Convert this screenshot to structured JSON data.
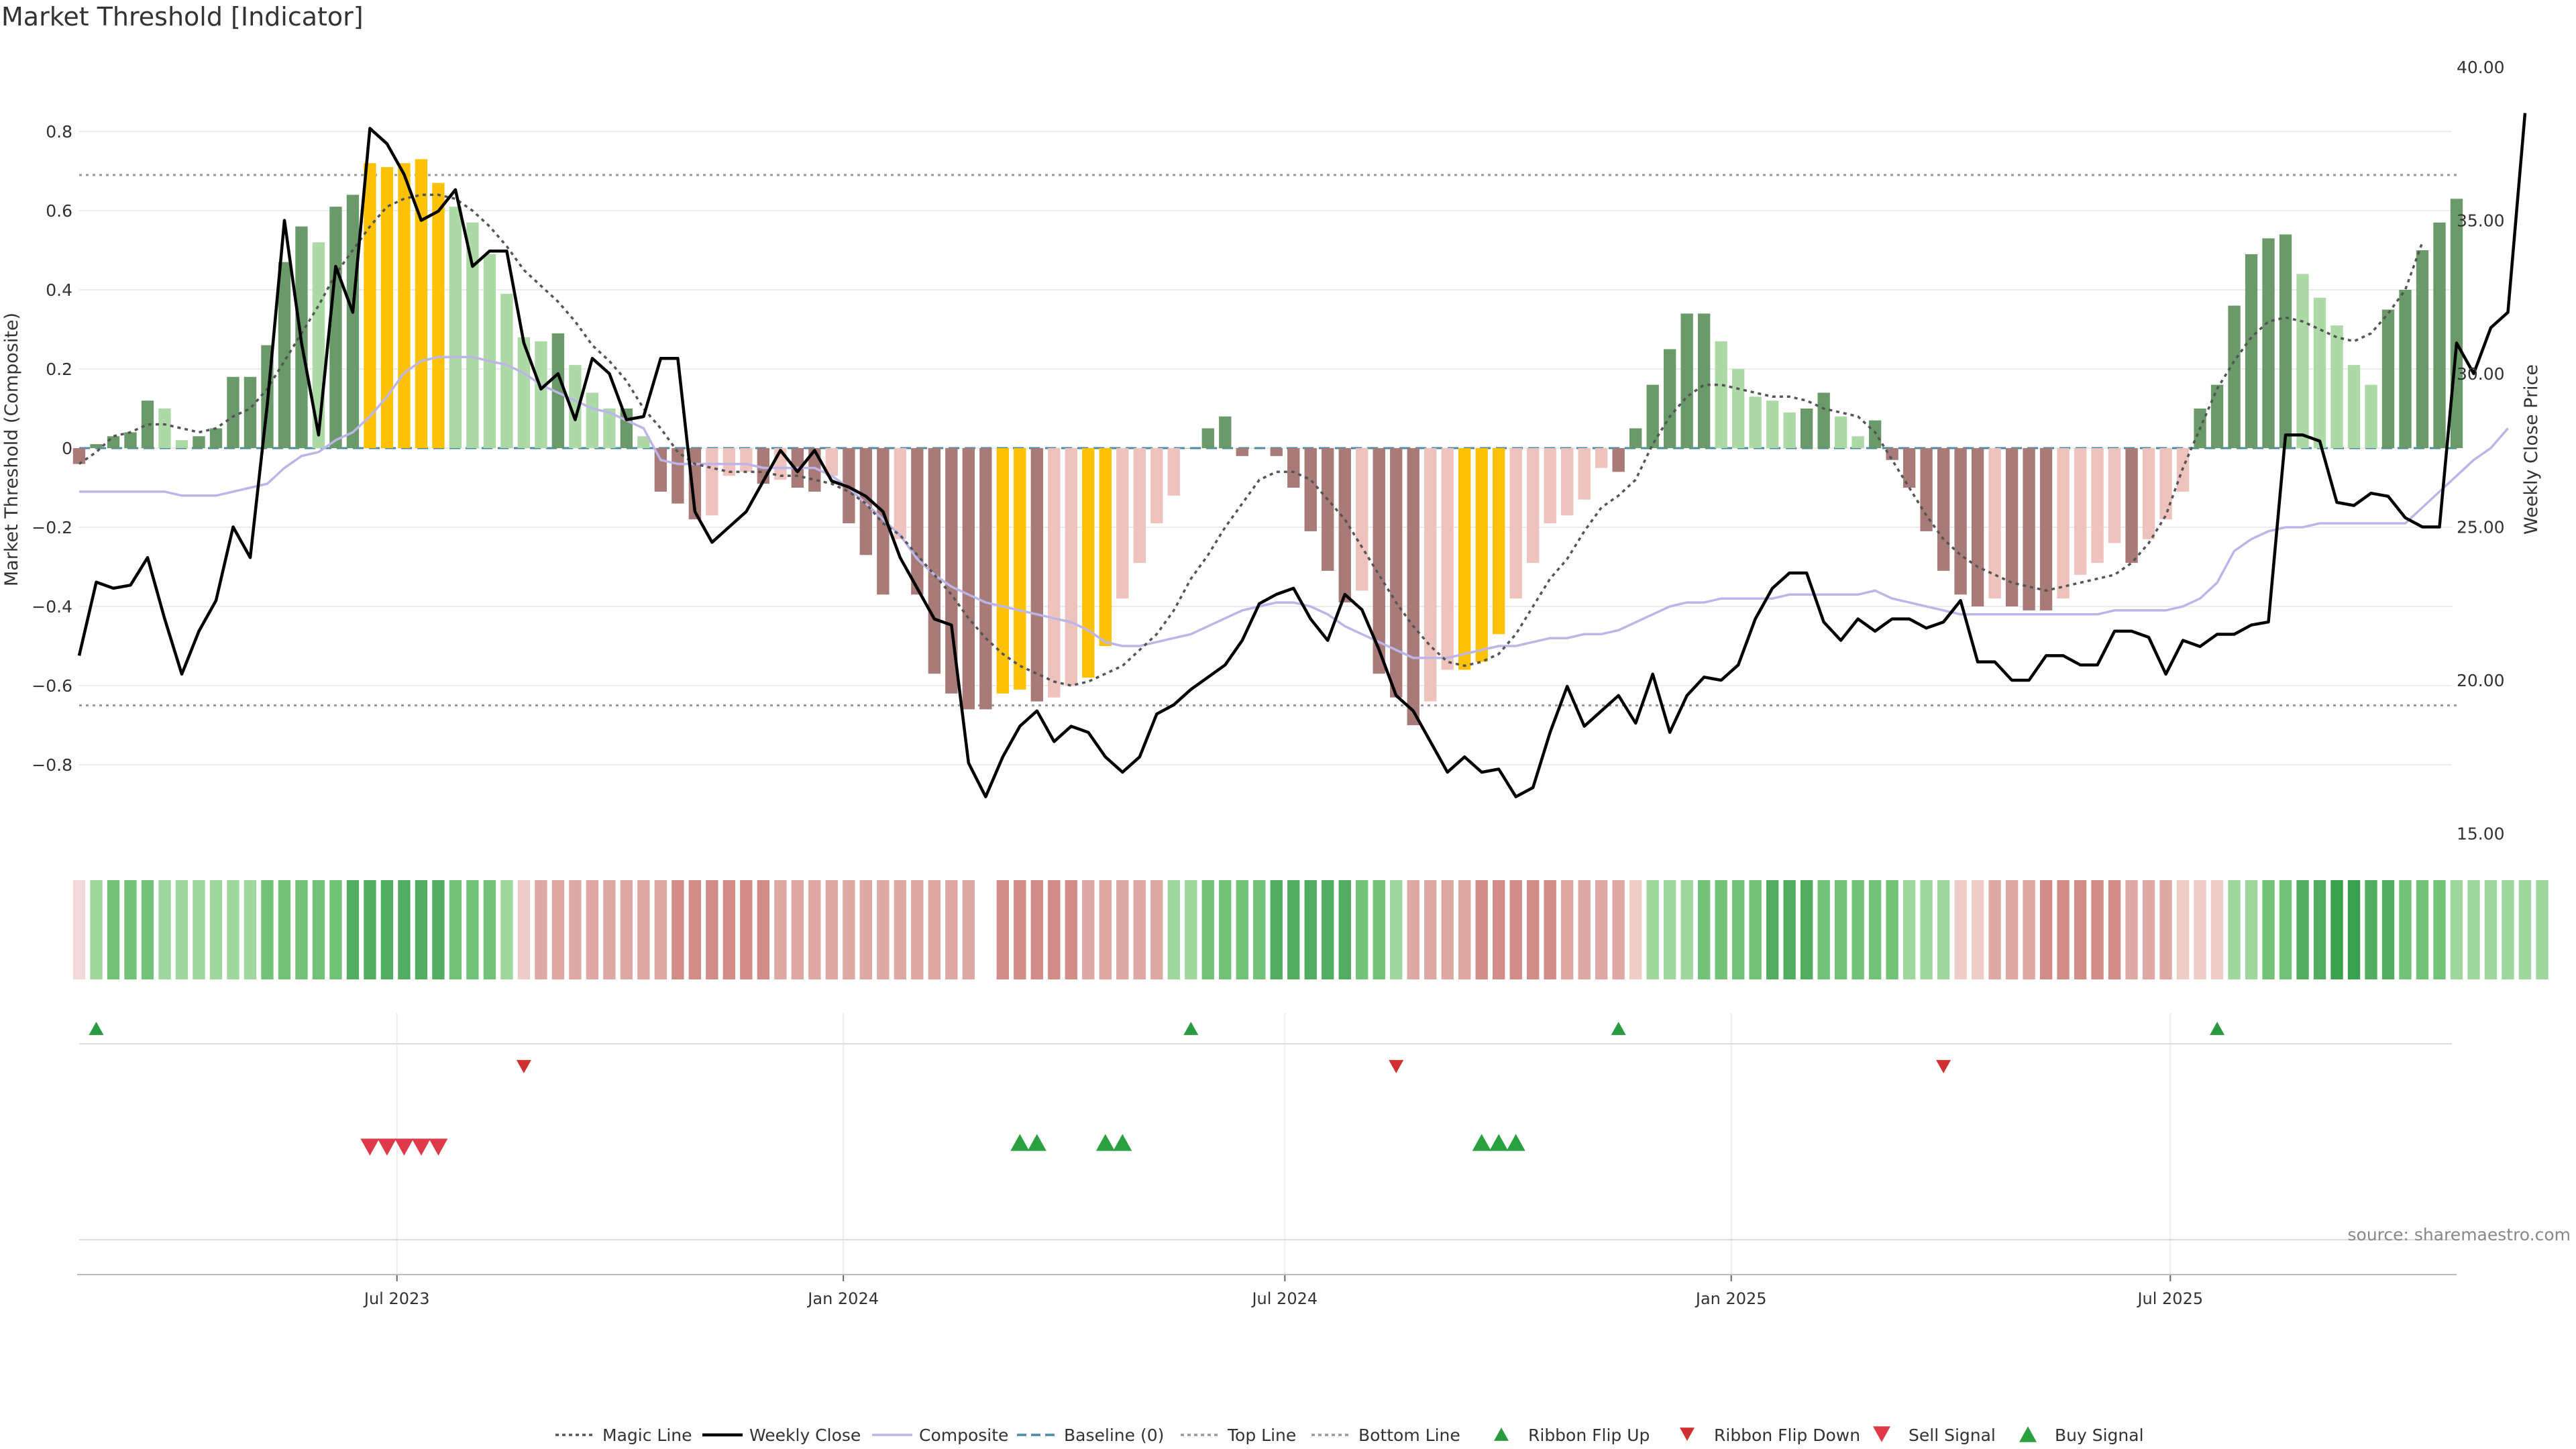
{
  "chart_data": {
    "type": "bar",
    "title": "Market Threshold [Indicator]",
    "ylabel_left": "Market Threshold (Composite)",
    "ylabel_right": "Weekly Close Price",
    "ylim_left": [
      -0.8,
      0.8
    ],
    "yticks_left": [
      "0.8",
      "0.6",
      "0.4",
      "0.2",
      "0",
      "−0.2",
      "−0.4",
      "−0.6",
      "−0.8"
    ],
    "ylim_right": [
      15,
      40
    ],
    "yticks_right": [
      "40.00",
      "35.00",
      "30.00",
      "25.00",
      "20.00",
      "15.00"
    ],
    "xticks": [
      "Jul 2023",
      "Jan 2024",
      "Jul 2024",
      "Jan 2025",
      "Jul 2025"
    ],
    "x_start": "2023-02-20",
    "x_end": "2025-10-27",
    "top_line": 0.69,
    "bottom_line": -0.65,
    "baseline": 0,
    "source": "source: sharemaestro.com",
    "grid": true,
    "legend_position": "bottom-center",
    "colors": {
      "bull_strong": "#6a9a6a",
      "bull_weak": "#acd9a6",
      "bear_strong": "#a87a78",
      "bear_weak": "#eec2bd",
      "extreme": "#fdc106",
      "weekly_close": "#000000",
      "magic_line": "#555555",
      "composite": "#bdb5e8",
      "baseline": "#4a8aa8",
      "threshold_line": "#999999",
      "ribbon_flip_up": "#2a9a40",
      "ribbon_flip_down": "#d03030",
      "sell_signal": "#e03a4a",
      "buy_signal": "#2aa040"
    },
    "legend": [
      {
        "label": "Magic Line",
        "kind": "dotted",
        "color": "#555555"
      },
      {
        "label": "Weekly Close",
        "kind": "solid",
        "color": "#000000"
      },
      {
        "label": "Composite",
        "kind": "solid",
        "color": "#bdb5e8"
      },
      {
        "label": "Baseline (0)",
        "kind": "dashed",
        "color": "#4a8aa8"
      },
      {
        "label": "Top Line",
        "kind": "dotted",
        "color": "#999999"
      },
      {
        "label": "Bottom Line",
        "kind": "dotted",
        "color": "#999999"
      },
      {
        "label": "Ribbon Flip Up",
        "kind": "tri-up",
        "color": "#2a9a40"
      },
      {
        "label": "Ribbon Flip Down",
        "kind": "tri-down",
        "color": "#d03030"
      },
      {
        "label": "Sell Signal",
        "kind": "tri-down-big",
        "color": "#e03a4a"
      },
      {
        "label": "Buy Signal",
        "kind": "tri-up-big",
        "color": "#2aa040"
      }
    ],
    "bars": [
      -0.04,
      0.01,
      0.03,
      0.04,
      0.12,
      0.1,
      0.02,
      0.03,
      0.05,
      0.18,
      0.18,
      0.26,
      0.47,
      0.56,
      0.52,
      0.61,
      0.64,
      0.72,
      0.71,
      0.72,
      0.73,
      0.67,
      0.61,
      0.57,
      0.49,
      0.39,
      0.28,
      0.27,
      0.29,
      0.21,
      0.14,
      0.1,
      0.1,
      0.03,
      -0.11,
      -0.14,
      -0.18,
      -0.17,
      -0.07,
      -0.06,
      -0.09,
      -0.08,
      -0.1,
      -0.11,
      -0.07,
      -0.19,
      -0.27,
      -0.37,
      -0.23,
      -0.37,
      -0.57,
      -0.62,
      -0.66,
      -0.66,
      -0.62,
      -0.61,
      -0.64,
      -0.63,
      -0.6,
      -0.58,
      -0.5,
      -0.38,
      -0.29,
      -0.19,
      -0.12,
      0.0,
      0.05,
      0.08,
      -0.02,
      0.0,
      -0.02,
      -0.1,
      -0.21,
      -0.31,
      -0.39,
      -0.36,
      -0.57,
      -0.63,
      -0.7,
      -0.64,
      -0.56,
      -0.56,
      -0.54,
      -0.47,
      -0.38,
      -0.29,
      -0.19,
      -0.17,
      -0.13,
      -0.05,
      -0.06,
      0.05,
      0.16,
      0.25,
      0.34,
      0.34,
      0.27,
      0.2,
      0.13,
      0.12,
      0.09,
      0.1,
      0.14,
      0.08,
      0.03,
      0.07,
      -0.03,
      -0.1,
      -0.21,
      -0.31,
      -0.37,
      -0.4,
      -0.38,
      -0.4,
      -0.41,
      -0.41,
      -0.38,
      -0.32,
      -0.29,
      -0.24,
      -0.29,
      -0.23,
      -0.18,
      -0.11,
      0.1,
      0.16,
      0.36,
      0.49,
      0.53,
      0.54,
      0.44,
      0.38,
      0.31,
      0.21,
      0.16,
      0.35,
      0.4,
      0.5,
      0.57,
      0.63
    ],
    "extreme_bars": [
      17,
      18,
      19,
      20,
      21,
      54,
      55,
      59,
      60,
      81,
      82,
      83
    ],
    "weekly_close": [
      20.8,
      23.2,
      23.0,
      23.1,
      24.0,
      22.0,
      20.2,
      21.6,
      22.6,
      25.0,
      24.0,
      29.0,
      35.0,
      31.0,
      28.0,
      33.5,
      32.0,
      38.0,
      37.5,
      36.5,
      35.0,
      35.3,
      36.0,
      33.5,
      34.0,
      34.0,
      31.0,
      29.5,
      30.0,
      28.5,
      30.5,
      30.0,
      28.5,
      28.6,
      30.5,
      30.5,
      25.5,
      24.5,
      25.0,
      25.5,
      26.5,
      27.5,
      26.8,
      27.5,
      26.5,
      26.3,
      26.0,
      25.5,
      24.0,
      23.0,
      22.0,
      21.8,
      17.3,
      16.2,
      17.5,
      18.5,
      19.0,
      18.0,
      18.5,
      18.3,
      17.5,
      17.0,
      17.5,
      18.9,
      19.2,
      19.7,
      20.1,
      20.5,
      21.3,
      22.5,
      22.8,
      23.0,
      22.0,
      21.3,
      22.8,
      22.3,
      21.0,
      19.5,
      19.0,
      18.0,
      17.0,
      17.5,
      17.0,
      17.1,
      16.2,
      16.5,
      18.3,
      19.8,
      18.5,
      19.0,
      19.5,
      18.6,
      20.2,
      18.3,
      19.5,
      20.1,
      20.0,
      20.5,
      22.0,
      23.0,
      23.5,
      23.5,
      21.9,
      21.3,
      22.0,
      21.6,
      22.0,
      22.0,
      21.7,
      21.9,
      22.6,
      20.6,
      20.6,
      20.0,
      20.0,
      20.8,
      20.8,
      20.5,
      20.5,
      21.6,
      21.6,
      21.4,
      20.2,
      21.3,
      21.1,
      21.5,
      21.5,
      21.8,
      21.9,
      28.0,
      28.0,
      27.8,
      25.8,
      25.7,
      26.1,
      26.0,
      25.3,
      25.0,
      25.0,
      31.0,
      30.0,
      31.5,
      32.0,
      38.5
    ],
    "magic_line": [
      -0.04,
      -0.01,
      0.03,
      0.04,
      0.06,
      0.06,
      0.05,
      0.04,
      0.05,
      0.08,
      0.1,
      0.15,
      0.22,
      0.29,
      0.36,
      0.44,
      0.5,
      0.56,
      0.61,
      0.63,
      0.64,
      0.64,
      0.63,
      0.6,
      0.56,
      0.51,
      0.45,
      0.41,
      0.37,
      0.32,
      0.26,
      0.22,
      0.17,
      0.1,
      0.05,
      -0.01,
      -0.04,
      -0.05,
      -0.06,
      -0.06,
      -0.06,
      -0.07,
      -0.07,
      -0.08,
      -0.09,
      -0.11,
      -0.14,
      -0.19,
      -0.22,
      -0.27,
      -0.32,
      -0.37,
      -0.43,
      -0.48,
      -0.52,
      -0.55,
      -0.57,
      -0.59,
      -0.6,
      -0.59,
      -0.57,
      -0.55,
      -0.51,
      -0.47,
      -0.41,
      -0.33,
      -0.27,
      -0.2,
      -0.14,
      -0.08,
      -0.06,
      -0.06,
      -0.08,
      -0.13,
      -0.18,
      -0.25,
      -0.32,
      -0.39,
      -0.45,
      -0.5,
      -0.54,
      -0.55,
      -0.54,
      -0.52,
      -0.47,
      -0.4,
      -0.33,
      -0.28,
      -0.21,
      -0.15,
      -0.12,
      -0.08,
      0.01,
      0.08,
      0.13,
      0.16,
      0.16,
      0.15,
      0.14,
      0.13,
      0.13,
      0.12,
      0.1,
      0.09,
      0.08,
      0.04,
      -0.03,
      -0.1,
      -0.17,
      -0.23,
      -0.27,
      -0.3,
      -0.32,
      -0.34,
      -0.35,
      -0.36,
      -0.35,
      -0.34,
      -0.33,
      -0.32,
      -0.29,
      -0.24,
      -0.17,
      -0.05,
      0.05,
      0.15,
      0.22,
      0.28,
      0.32,
      0.33,
      0.32,
      0.3,
      0.28,
      0.27,
      0.29,
      0.34,
      0.4,
      0.52
    ],
    "composite": [
      -0.11,
      -0.11,
      -0.11,
      -0.11,
      -0.11,
      -0.11,
      -0.12,
      -0.12,
      -0.12,
      -0.11,
      -0.1,
      -0.09,
      -0.05,
      -0.02,
      -0.01,
      0.02,
      0.04,
      0.08,
      0.13,
      0.19,
      0.22,
      0.23,
      0.23,
      0.23,
      0.22,
      0.21,
      0.19,
      0.16,
      0.14,
      0.12,
      0.1,
      0.09,
      0.07,
      0.05,
      -0.03,
      -0.04,
      -0.04,
      -0.04,
      -0.04,
      -0.04,
      -0.05,
      -0.05,
      -0.05,
      -0.05,
      -0.07,
      -0.1,
      -0.14,
      -0.18,
      -0.22,
      -0.28,
      -0.32,
      -0.35,
      -0.37,
      -0.39,
      -0.4,
      -0.41,
      -0.42,
      -0.43,
      -0.44,
      -0.46,
      -0.49,
      -0.5,
      -0.5,
      -0.49,
      -0.48,
      -0.47,
      -0.45,
      -0.43,
      -0.41,
      -0.4,
      -0.39,
      -0.39,
      -0.4,
      -0.42,
      -0.45,
      -0.47,
      -0.49,
      -0.51,
      -0.53,
      -0.53,
      -0.53,
      -0.52,
      -0.51,
      -0.5,
      -0.5,
      -0.49,
      -0.48,
      -0.48,
      -0.47,
      -0.47,
      -0.46,
      -0.44,
      -0.42,
      -0.4,
      -0.39,
      -0.39,
      -0.38,
      -0.38,
      -0.38,
      -0.38,
      -0.37,
      -0.37,
      -0.37,
      -0.37,
      -0.37,
      -0.36,
      -0.38,
      -0.39,
      -0.4,
      -0.41,
      -0.42,
      -0.42,
      -0.42,
      -0.42,
      -0.42,
      -0.42,
      -0.42,
      -0.42,
      -0.42,
      -0.41,
      -0.41,
      -0.41,
      -0.41,
      -0.4,
      -0.38,
      -0.34,
      -0.26,
      -0.23,
      -0.21,
      -0.2,
      -0.2,
      -0.19,
      -0.19,
      -0.19,
      -0.19,
      -0.19,
      -0.19,
      -0.15,
      -0.11,
      -0.07,
      -0.03,
      0.0,
      0.05
    ],
    "ribbon": [
      -1,
      1,
      2,
      2,
      2,
      1,
      1,
      1,
      1,
      1,
      1,
      2,
      2,
      2,
      2,
      2,
      3,
      3,
      3,
      3,
      3,
      3,
      2,
      2,
      2,
      1,
      -1,
      -2,
      -2,
      -2,
      -2,
      -2,
      -2,
      -2,
      -2,
      -3,
      -3,
      -3,
      -3,
      -3,
      -3,
      -2,
      -2,
      -2,
      -2,
      -2,
      -2,
      -2,
      -2,
      -2,
      -2,
      -2,
      -2,
      0,
      -3,
      -3,
      -3,
      -3,
      -3,
      -2,
      -2,
      -2,
      -2,
      -2,
      1,
      1,
      2,
      2,
      2,
      2,
      3,
      3,
      3,
      3,
      3,
      2,
      2,
      1,
      -2,
      -2,
      -2,
      -2,
      -3,
      -3,
      -3,
      -3,
      -3,
      -2,
      -2,
      -2,
      -2,
      -1,
      1,
      1,
      1,
      2,
      2,
      2,
      2,
      3,
      3,
      3,
      2,
      2,
      2,
      2,
      2,
      1,
      1,
      1,
      -1,
      -1,
      -2,
      -2,
      -2,
      -3,
      -3,
      -3,
      -3,
      -3,
      -2,
      -2,
      -2,
      -1,
      -1,
      -1,
      1,
      1,
      2,
      2,
      3,
      3,
      4,
      4,
      3,
      3,
      2,
      2,
      2,
      1,
      1,
      1,
      1,
      1,
      1
    ],
    "ribbon_flip_up": [
      1,
      65,
      90,
      125
    ],
    "ribbon_flip_down": [
      26,
      77,
      109
    ],
    "sell_signals": [
      17,
      18,
      19,
      20,
      21
    ],
    "buy_signals": [
      55,
      56,
      60,
      61,
      82,
      83,
      84
    ]
  }
}
